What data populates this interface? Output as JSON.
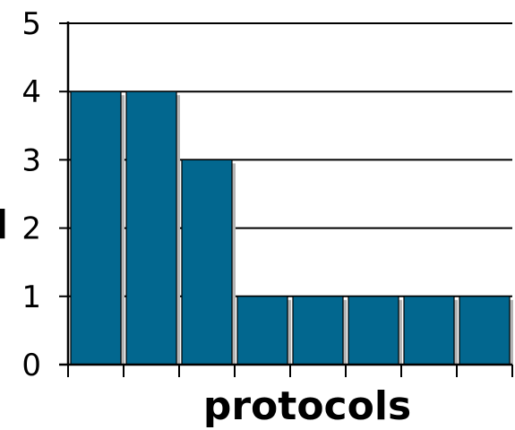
{
  "chart_data": {
    "type": "bar",
    "categories": [
      "",
      "",
      "",
      "",
      "",
      "",
      "",
      ""
    ],
    "values": [
      4,
      4,
      3,
      1,
      1,
      1,
      1,
      1
    ],
    "xlabel": "protocols",
    "ylabel_visible_fragment": "l",
    "ylim": [
      0,
      5
    ],
    "yticks": [
      "0",
      "1",
      "2",
      "3",
      "4",
      "5"
    ],
    "grid": "horizontal",
    "colors": {
      "bar": "#02678f",
      "bar_shadow": "#b5b5b5",
      "axis": "#000000"
    }
  }
}
